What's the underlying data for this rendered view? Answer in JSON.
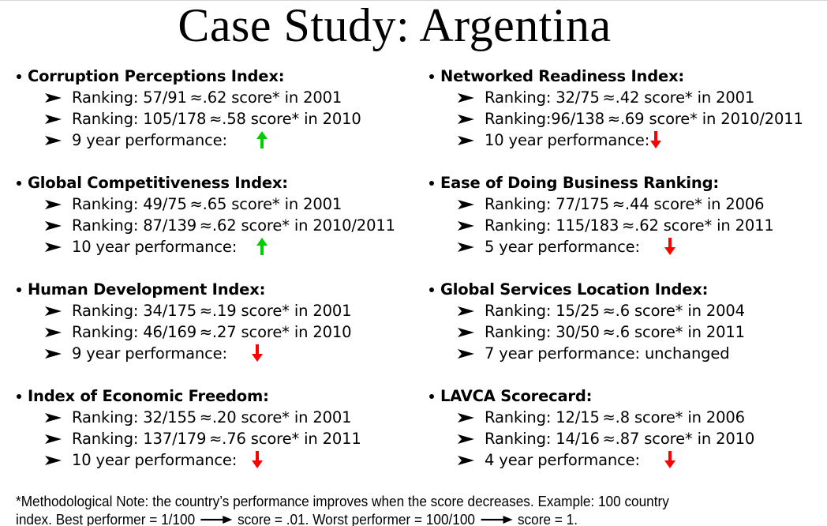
{
  "slide": {
    "title": "Case Study: Argentina",
    "colors": {
      "up_arrow": "#00cc00",
      "down_arrow": "#ff0000",
      "text": "#000000",
      "top_rule": "#d4d4d4"
    }
  },
  "sections": [
    {
      "heading": "Corruption  Perceptions Index:",
      "items": [
        "Ranking: 57/91 ≈.62 score* in 2001",
        "Ranking: 105/178 ≈.58 score* in 2010"
      ],
      "performance_label": "9 year performance:",
      "performance_trend": "up",
      "performance_icon": "green-up-arrow-icon"
    },
    {
      "heading": "Networked Readiness Index:",
      "items": [
        "Ranking: 32/75 ≈.42 score* in 2001",
        "Ranking:96/138 ≈.69 score* in 2010/2011"
      ],
      "performance_label": "10 year performance:",
      "performance_trend": "down",
      "performance_icon": "red-down-arrow-icon"
    },
    {
      "heading": "Global Competitiveness Index:",
      "items": [
        "Ranking: 49/75 ≈.65 score* in 2001",
        "Ranking: 87/139 ≈.62 score* in 2010/2011"
      ],
      "performance_label": "10 year performance:",
      "performance_trend": "up",
      "performance_icon": "green-up-arrow-icon"
    },
    {
      "heading": "Ease of Doing Business Ranking:",
      "items": [
        "Ranking: 77/175 ≈.44 score* in 2006",
        "Ranking: 115/183 ≈.62 score* in 2011"
      ],
      "performance_label": "5 year performance:",
      "performance_trend": "down",
      "performance_icon": "red-down-arrow-icon"
    },
    {
      "heading": "Human Development Index:",
      "items": [
        "Ranking: 34/175 ≈.19 score* in 2001",
        "Ranking: 46/169 ≈.27 score* in 2010"
      ],
      "performance_label": "9 year performance:",
      "performance_trend": "down",
      "performance_icon": "red-down-arrow-icon"
    },
    {
      "heading": "Global Services Location Index:",
      "items": [
        "Ranking: 15/25 ≈.6 score* in 2004",
        "Ranking: 30/50 ≈.6 score* in 2011"
      ],
      "performance_label": "7 year performance:  unchanged",
      "performance_trend": "unchanged",
      "performance_icon": ""
    },
    {
      "heading": "Index of Economic Freedom:",
      "items": [
        "Ranking: 32/155 ≈.20 score* in 2001",
        "Ranking: 137/179 ≈.76 score* in 2011"
      ],
      "performance_label": "10 year performance:",
      "performance_trend": "down",
      "performance_icon": "red-down-arrow-icon"
    },
    {
      "heading": "LAVCA Scorecard:",
      "items": [
        "Ranking: 12/15 ≈.8 score* in 2006",
        "Ranking: 14/16 ≈.87 score* in 2010"
      ],
      "performance_label": "4 year performance:",
      "performance_trend": "down",
      "performance_icon": "red-down-arrow-icon"
    }
  ],
  "note": {
    "line1": "*Methodological Note: the country’s performance improves when the score decreases. Example: 100 country",
    "line2_part1": "index. Best performer = 1/100",
    "line2_part2": "score = .01. Worst performer = 100/100",
    "line2_part3": "score = 1."
  }
}
